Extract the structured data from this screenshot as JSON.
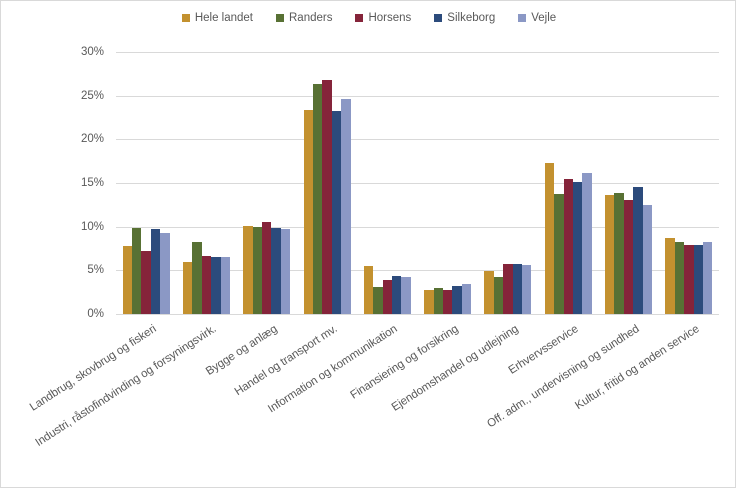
{
  "chart_data": {
    "type": "bar",
    "title": "",
    "xlabel": "",
    "ylabel": "",
    "grid": true,
    "legend_position": "top",
    "ylim": [
      0,
      30
    ],
    "ytick_step": 5,
    "yticks": [
      "0%",
      "5%",
      "10%",
      "15%",
      "20%",
      "25%",
      "30%"
    ],
    "categories": [
      "Landbrug, skovbrug og fiskeri",
      "Industri, råstofindvinding og forsyningsvirk.",
      "Bygge og anlæg",
      "Handel og transport mv.",
      "Information og kommunikation",
      "Finansiering og forsikring",
      "Ejendomshandel og udlejning",
      "Erhvervsservice",
      "Off. adm., undervisning og sundhed",
      "Kultur, fritid og anden service"
    ],
    "series": [
      {
        "name": "Hele landet",
        "color": "#C3912F",
        "values": [
          7.8,
          6.0,
          10.1,
          23.4,
          5.5,
          2.8,
          4.9,
          17.3,
          13.6,
          8.7
        ]
      },
      {
        "name": "Randers",
        "color": "#587134",
        "values": [
          9.8,
          8.2,
          10.0,
          26.3,
          3.1,
          3.0,
          4.2,
          13.7,
          13.8,
          8.2
        ]
      },
      {
        "name": "Horsens",
        "color": "#85243A",
        "values": [
          7.2,
          6.6,
          10.5,
          26.8,
          3.9,
          2.8,
          5.7,
          15.5,
          13.0,
          7.9
        ]
      },
      {
        "name": "Silkeborg",
        "color": "#2C4B7C",
        "values": [
          9.7,
          6.5,
          9.8,
          23.2,
          4.4,
          3.2,
          5.7,
          15.1,
          14.6,
          7.9
        ]
      },
      {
        "name": "Vejle",
        "color": "#8B98C5",
        "values": [
          9.3,
          6.5,
          9.7,
          24.6,
          4.2,
          3.4,
          5.6,
          16.1,
          12.5,
          8.3
        ]
      }
    ]
  },
  "colors": {
    "gridline": "#d9d9d9",
    "axis_text": "#595959"
  }
}
